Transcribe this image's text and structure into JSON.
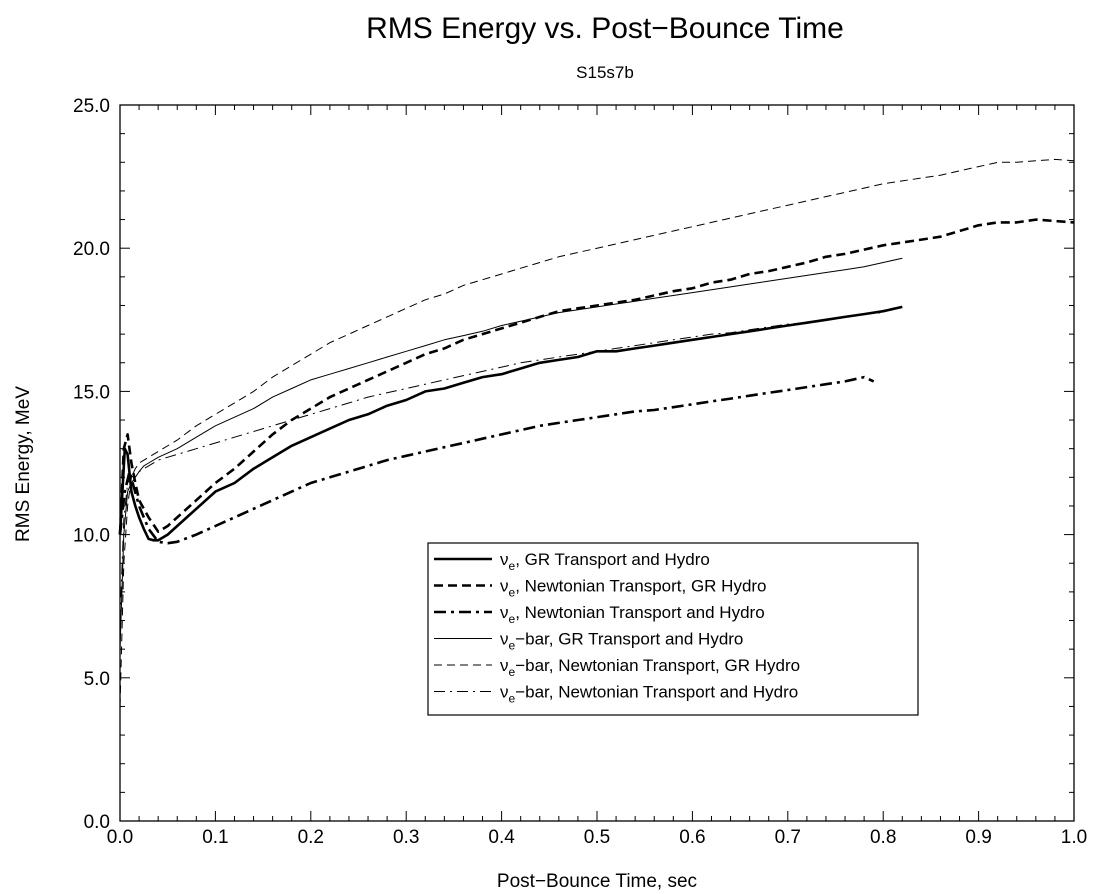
{
  "chart_data": {
    "type": "line",
    "title": "RMS Energy vs. Post−Bounce Time",
    "subtitle": "S15s7b",
    "xlabel": "Post−Bounce Time, sec",
    "ylabel": "RMS Energy, MeV",
    "xlim": [
      0.0,
      1.0
    ],
    "ylim": [
      0.0,
      25.0
    ],
    "x_ticks": [
      "0.0",
      "0.1",
      "0.2",
      "0.3",
      "0.4",
      "0.5",
      "0.6",
      "0.7",
      "0.8",
      "0.9",
      "1.0"
    ],
    "y_ticks": [
      "0.0",
      "5.0",
      "10.0",
      "15.0",
      "20.0",
      "25.0"
    ],
    "grid": false,
    "legend_position": "center-right",
    "series": [
      {
        "name": "νₑ, GR Transport and Hydro",
        "label_main": "ν",
        "label_sub": "e",
        "label_rest": ", GR Transport and Hydro",
        "style": "solid",
        "weight": "thick",
        "x": [
          0.0,
          0.005,
          0.008,
          0.012,
          0.016,
          0.02,
          0.025,
          0.03,
          0.035,
          0.04,
          0.05,
          0.06,
          0.08,
          0.1,
          0.12,
          0.14,
          0.16,
          0.18,
          0.2,
          0.22,
          0.24,
          0.26,
          0.28,
          0.3,
          0.32,
          0.34,
          0.36,
          0.38,
          0.4,
          0.42,
          0.44,
          0.46,
          0.48,
          0.5,
          0.52,
          0.54,
          0.56,
          0.58,
          0.6,
          0.62,
          0.64,
          0.66,
          0.68,
          0.7,
          0.72,
          0.74,
          0.76,
          0.78,
          0.8,
          0.82
        ],
        "y": [
          10.0,
          13.0,
          12.8,
          11.5,
          11.0,
          10.6,
          10.2,
          9.85,
          9.8,
          9.8,
          10.0,
          10.3,
          10.9,
          11.5,
          11.8,
          12.3,
          12.7,
          13.1,
          13.4,
          13.7,
          14.0,
          14.2,
          14.5,
          14.7,
          15.0,
          15.1,
          15.3,
          15.5,
          15.6,
          15.8,
          16.0,
          16.1,
          16.2,
          16.4,
          16.4,
          16.5,
          16.6,
          16.7,
          16.8,
          16.9,
          17.0,
          17.1,
          17.2,
          17.3,
          17.4,
          17.5,
          17.6,
          17.7,
          17.8,
          17.95
        ]
      },
      {
        "name": "νₑ, Newtonian Transport, GR Hydro",
        "label_main": "ν",
        "label_sub": "e",
        "label_rest": ", Newtonian Transport, GR Hydro",
        "style": "dashed",
        "weight": "thick",
        "x": [
          0.0,
          0.004,
          0.008,
          0.012,
          0.016,
          0.02,
          0.025,
          0.03,
          0.04,
          0.05,
          0.06,
          0.08,
          0.1,
          0.12,
          0.14,
          0.16,
          0.18,
          0.2,
          0.22,
          0.24,
          0.26,
          0.28,
          0.3,
          0.32,
          0.34,
          0.36,
          0.38,
          0.4,
          0.42,
          0.44,
          0.46,
          0.48,
          0.5,
          0.52,
          0.54,
          0.56,
          0.58,
          0.6,
          0.62,
          0.64,
          0.66,
          0.68,
          0.7,
          0.72,
          0.74,
          0.76,
          0.78,
          0.8,
          0.82,
          0.84,
          0.86,
          0.88,
          0.9,
          0.92,
          0.94,
          0.96,
          0.98,
          1.0
        ],
        "y": [
          10.0,
          13.0,
          13.5,
          12.5,
          11.8,
          11.2,
          10.9,
          10.6,
          10.1,
          10.3,
          10.6,
          11.2,
          11.8,
          12.3,
          12.9,
          13.5,
          14.0,
          14.4,
          14.8,
          15.1,
          15.4,
          15.7,
          16.0,
          16.3,
          16.5,
          16.8,
          17.0,
          17.2,
          17.4,
          17.6,
          17.8,
          17.9,
          18.0,
          18.1,
          18.2,
          18.35,
          18.5,
          18.6,
          18.8,
          18.9,
          19.1,
          19.2,
          19.35,
          19.5,
          19.7,
          19.8,
          19.95,
          20.1,
          20.2,
          20.3,
          20.4,
          20.6,
          20.8,
          20.9,
          20.9,
          21.0,
          20.95,
          20.9
        ]
      },
      {
        "name": "νₑ, Newtonian Transport and Hydro",
        "label_main": "ν",
        "label_sub": "e",
        "label_rest": ", Newtonian Transport and Hydro",
        "style": "dashdot",
        "weight": "thick",
        "x": [
          0.0,
          0.005,
          0.01,
          0.015,
          0.02,
          0.03,
          0.04,
          0.05,
          0.06,
          0.08,
          0.1,
          0.12,
          0.14,
          0.16,
          0.18,
          0.2,
          0.22,
          0.24,
          0.26,
          0.28,
          0.3,
          0.32,
          0.34,
          0.36,
          0.38,
          0.4,
          0.42,
          0.44,
          0.46,
          0.48,
          0.5,
          0.52,
          0.54,
          0.56,
          0.58,
          0.6,
          0.62,
          0.64,
          0.66,
          0.68,
          0.7,
          0.72,
          0.74,
          0.76,
          0.78,
          0.79
        ],
        "y": [
          10.0,
          11.5,
          12.2,
          11.6,
          11.0,
          10.2,
          9.75,
          9.7,
          9.75,
          10.0,
          10.3,
          10.6,
          10.9,
          11.2,
          11.5,
          11.8,
          12.0,
          12.2,
          12.4,
          12.6,
          12.75,
          12.9,
          13.05,
          13.2,
          13.35,
          13.5,
          13.65,
          13.8,
          13.9,
          14.0,
          14.1,
          14.2,
          14.3,
          14.35,
          14.45,
          14.55,
          14.65,
          14.75,
          14.85,
          14.95,
          15.05,
          15.15,
          15.25,
          15.35,
          15.5,
          15.35
        ]
      },
      {
        "name": "νₑ−bar, GR Transport and Hydro",
        "label_main": "ν",
        "label_sub": "e",
        "label_rest": "−bar, GR Transport and Hydro",
        "style": "solid",
        "weight": "thin",
        "x": [
          0.0,
          0.004,
          0.008,
          0.012,
          0.016,
          0.02,
          0.025,
          0.03,
          0.04,
          0.06,
          0.08,
          0.1,
          0.12,
          0.14,
          0.16,
          0.18,
          0.2,
          0.22,
          0.24,
          0.26,
          0.28,
          0.3,
          0.32,
          0.34,
          0.36,
          0.38,
          0.4,
          0.42,
          0.44,
          0.46,
          0.48,
          0.5,
          0.52,
          0.54,
          0.56,
          0.58,
          0.6,
          0.62,
          0.64,
          0.66,
          0.68,
          0.7,
          0.72,
          0.74,
          0.76,
          0.78,
          0.8,
          0.82
        ],
        "y": [
          6.0,
          10.0,
          11.5,
          11.8,
          12.0,
          12.2,
          12.4,
          12.5,
          12.7,
          13.0,
          13.4,
          13.8,
          14.1,
          14.4,
          14.8,
          15.1,
          15.4,
          15.6,
          15.8,
          16.0,
          16.2,
          16.4,
          16.6,
          16.8,
          16.95,
          17.1,
          17.3,
          17.45,
          17.6,
          17.75,
          17.85,
          17.95,
          18.05,
          18.15,
          18.25,
          18.35,
          18.45,
          18.55,
          18.65,
          18.75,
          18.85,
          18.95,
          19.05,
          19.15,
          19.25,
          19.35,
          19.5,
          19.65
        ]
      },
      {
        "name": "νₑ−bar, Newtonian Transport, GR Hydro",
        "label_main": "ν",
        "label_sub": "e",
        "label_rest": "−bar, Newtonian Transport, GR Hydro",
        "style": "dashed",
        "weight": "thin",
        "x": [
          0.0,
          0.004,
          0.008,
          0.012,
          0.016,
          0.02,
          0.03,
          0.04,
          0.06,
          0.08,
          0.1,
          0.12,
          0.14,
          0.16,
          0.18,
          0.2,
          0.22,
          0.24,
          0.26,
          0.28,
          0.3,
          0.32,
          0.34,
          0.36,
          0.38,
          0.4,
          0.42,
          0.44,
          0.46,
          0.48,
          0.5,
          0.52,
          0.54,
          0.56,
          0.58,
          0.6,
          0.62,
          0.64,
          0.66,
          0.68,
          0.7,
          0.72,
          0.74,
          0.76,
          0.78,
          0.8,
          0.82,
          0.84,
          0.86,
          0.88,
          0.9,
          0.92,
          0.94,
          0.96,
          0.98,
          1.0
        ],
        "y": [
          4.0,
          9.0,
          11.0,
          12.0,
          12.3,
          12.5,
          12.7,
          12.9,
          13.3,
          13.8,
          14.2,
          14.6,
          15.0,
          15.5,
          15.9,
          16.3,
          16.7,
          17.0,
          17.3,
          17.6,
          17.9,
          18.2,
          18.4,
          18.7,
          18.9,
          19.1,
          19.3,
          19.5,
          19.7,
          19.85,
          20.0,
          20.15,
          20.3,
          20.45,
          20.6,
          20.75,
          20.9,
          21.05,
          21.2,
          21.35,
          21.5,
          21.65,
          21.8,
          21.95,
          22.1,
          22.25,
          22.35,
          22.45,
          22.55,
          22.7,
          22.85,
          23.0,
          23.0,
          23.05,
          23.1,
          23.05
        ]
      },
      {
        "name": "νₑ−bar, Newtonian Transport and Hydro",
        "label_main": "ν",
        "label_sub": "e",
        "label_rest": "−bar, Newtonian Transport and Hydro",
        "style": "dashdot",
        "weight": "thin",
        "x": [
          0.0,
          0.004,
          0.008,
          0.012,
          0.016,
          0.02,
          0.03,
          0.04,
          0.06,
          0.08,
          0.1,
          0.12,
          0.14,
          0.16,
          0.18,
          0.2,
          0.22,
          0.24,
          0.26,
          0.28,
          0.3,
          0.32,
          0.34,
          0.36,
          0.38,
          0.4,
          0.42,
          0.44,
          0.46,
          0.48,
          0.5,
          0.52,
          0.54,
          0.56,
          0.58,
          0.6,
          0.62,
          0.64,
          0.66,
          0.68,
          0.7,
          0.72,
          0.74,
          0.76,
          0.78,
          0.8
        ],
        "y": [
          7.0,
          10.5,
          11.8,
          12.0,
          12.1,
          12.2,
          12.4,
          12.6,
          12.8,
          13.0,
          13.2,
          13.4,
          13.6,
          13.8,
          14.0,
          14.2,
          14.4,
          14.6,
          14.8,
          14.95,
          15.1,
          15.25,
          15.4,
          15.55,
          15.7,
          15.85,
          16.0,
          16.1,
          16.2,
          16.3,
          16.4,
          16.5,
          16.6,
          16.7,
          16.8,
          16.9,
          17.0,
          17.05,
          17.15,
          17.25,
          17.35,
          17.4,
          17.5,
          17.6,
          17.7,
          17.75
        ]
      }
    ]
  }
}
